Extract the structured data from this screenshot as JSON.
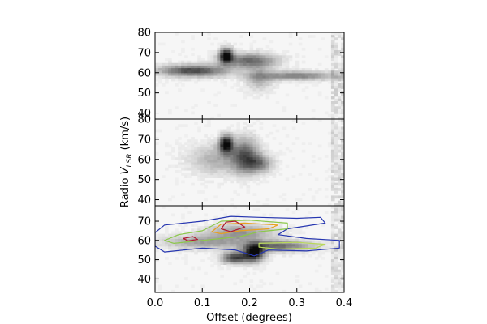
{
  "chart_data": {
    "type": "heatmap",
    "figure": "three stacked position-velocity diagrams sharing x axis",
    "xlabel": "Offset (degrees)",
    "ylabel_prefix": "Radio ",
    "ylabel_var": "V",
    "ylabel_sub": "LSR",
    "ylabel_suffix": " (km/s)",
    "xlim": [
      0.0,
      0.4
    ],
    "x_ticks": [
      "0.0",
      "0.1",
      "0.2",
      "0.3",
      "0.4"
    ],
    "x_tick_values": [
      0.0,
      0.1,
      0.2,
      0.3,
      0.4
    ],
    "panels": [
      {
        "name": "top",
        "ylim": [
          37,
          80
        ],
        "y_ticks": [
          "40",
          "50",
          "60",
          "70",
          "80"
        ],
        "y_tick_values": [
          40,
          50,
          60,
          70,
          80
        ],
        "features": [
          {
            "x": 0.15,
            "y": 68.5,
            "intensity": 1.0,
            "sx": 0.01,
            "sy": 2.5
          },
          {
            "x": 0.08,
            "y": 61.0,
            "intensity": 0.75,
            "sx": 0.05,
            "sy": 2.0
          },
          {
            "x": 0.2,
            "y": 66.0,
            "intensity": 0.6,
            "sx": 0.04,
            "sy": 2.5
          },
          {
            "x": 0.3,
            "y": 58.5,
            "intensity": 0.5,
            "sx": 0.06,
            "sy": 1.5
          },
          {
            "x": 0.22,
            "y": 57.0,
            "intensity": 0.3,
            "sx": 0.02,
            "sy": 4.0
          }
        ]
      },
      {
        "name": "middle",
        "ylim": [
          37,
          80
        ],
        "y_ticks": [
          "40",
          "50",
          "60",
          "70",
          "80"
        ],
        "y_tick_values": [
          40,
          50,
          60,
          70,
          80
        ],
        "features": [
          {
            "x": 0.15,
            "y": 67.5,
            "intensity": 1.0,
            "sx": 0.01,
            "sy": 3.0
          },
          {
            "x": 0.19,
            "y": 62.0,
            "intensity": 0.6,
            "sx": 0.02,
            "sy": 6.0
          },
          {
            "x": 0.22,
            "y": 58.0,
            "intensity": 0.5,
            "sx": 0.02,
            "sy": 3.0
          },
          {
            "x": 0.13,
            "y": 60.0,
            "intensity": 0.3,
            "sx": 0.04,
            "sy": 5.0
          }
        ]
      },
      {
        "name": "bottom",
        "ylim": [
          33,
          78
        ],
        "y_ticks": [
          "40",
          "50",
          "60",
          "70"
        ],
        "y_tick_values": [
          40,
          50,
          60,
          70
        ],
        "features": [
          {
            "x": 0.21,
            "y": 53.5,
            "intensity": 1.0,
            "sx": 0.015,
            "sy": 3.0
          },
          {
            "x": 0.17,
            "y": 51.0,
            "intensity": 0.8,
            "sx": 0.02,
            "sy": 2.0
          },
          {
            "x": 0.26,
            "y": 57.0,
            "intensity": 0.6,
            "sx": 0.05,
            "sy": 2.0
          },
          {
            "x": 0.18,
            "y": 64.0,
            "intensity": 0.4,
            "sx": 0.05,
            "sy": 3.0
          },
          {
            "x": 0.1,
            "y": 59.0,
            "intensity": 0.35,
            "sx": 0.06,
            "sy": 2.5
          }
        ],
        "contours": [
          {
            "level": "outer",
            "color": "#2636b0",
            "points": [
              [
                0.0,
                64
              ],
              [
                0.02,
                68
              ],
              [
                0.1,
                70
              ],
              [
                0.16,
                72.5
              ],
              [
                0.22,
                72
              ],
              [
                0.3,
                71.5
              ],
              [
                0.35,
                72
              ],
              [
                0.36,
                69
              ],
              [
                0.28,
                66
              ],
              [
                0.26,
                63
              ],
              [
                0.32,
                61
              ],
              [
                0.39,
                60
              ],
              [
                0.39,
                56
              ],
              [
                0.32,
                54.5
              ],
              [
                0.24,
                55
              ],
              [
                0.21,
                52
              ],
              [
                0.17,
                55
              ],
              [
                0.1,
                56
              ],
              [
                0.02,
                54
              ],
              [
                0.0,
                57
              ]
            ]
          },
          {
            "level": "mid",
            "color": "#8cc84a",
            "points": [
              [
                0.02,
                60
              ],
              [
                0.05,
                63
              ],
              [
                0.1,
                65
              ],
              [
                0.14,
                70
              ],
              [
                0.2,
                70.5
              ],
              [
                0.28,
                69
              ],
              [
                0.28,
                66
              ],
              [
                0.22,
                64.5
              ],
              [
                0.18,
                62
              ],
              [
                0.1,
                60
              ],
              [
                0.04,
                58.5
              ]
            ]
          },
          {
            "level": "mid2",
            "color": "#b8d85a",
            "points": [
              [
                0.22,
                58.5
              ],
              [
                0.3,
                59
              ],
              [
                0.36,
                58
              ],
              [
                0.34,
                56
              ],
              [
                0.26,
                55.5
              ],
              [
                0.22,
                56.5
              ]
            ]
          },
          {
            "level": "high",
            "color": "#e8a020",
            "points": [
              [
                0.12,
                64.5
              ],
              [
                0.14,
                68.5
              ],
              [
                0.19,
                69
              ],
              [
                0.26,
                68
              ],
              [
                0.24,
                66
              ],
              [
                0.18,
                65
              ],
              [
                0.14,
                63.5
              ]
            ]
          },
          {
            "level": "peak",
            "color": "#b01830",
            "points": [
              [
                0.14,
                66
              ],
              [
                0.15,
                69.5
              ],
              [
                0.17,
                70
              ],
              [
                0.19,
                67
              ],
              [
                0.16,
                64.5
              ]
            ]
          },
          {
            "level": "peak2",
            "color": "#b01830",
            "points": [
              [
                0.06,
                61
              ],
              [
                0.08,
                62
              ],
              [
                0.09,
                60.5
              ],
              [
                0.07,
                59.8
              ]
            ]
          }
        ]
      }
    ]
  }
}
